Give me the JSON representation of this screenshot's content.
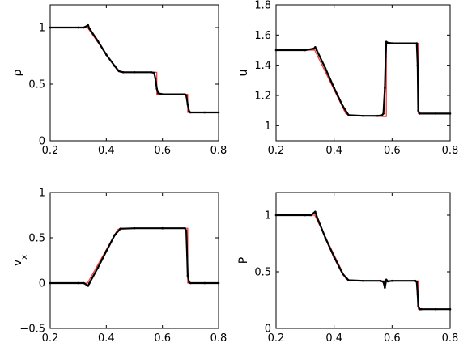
{
  "chart_data": [
    {
      "type": "line",
      "ylabel": "ρ",
      "ylabel_sub": "",
      "xlim": [
        0.2,
        0.8
      ],
      "ylim": [
        0,
        1.2
      ],
      "xticks": [
        "0.2",
        "0.4",
        "0.6",
        "0.8"
      ],
      "yticks": [
        "0",
        "0.5",
        "1"
      ],
      "series": [
        {
          "style": "exact",
          "color": "#ff3030",
          "x": [
            0.2,
            0.333,
            0.44,
            0.45,
            0.58,
            0.58,
            0.69,
            0.69,
            0.8
          ],
          "y": [
            1.0,
            1.0,
            0.62,
            0.605,
            0.605,
            0.41,
            0.41,
            0.25,
            0.25
          ]
        },
        {
          "style": "numerical",
          "color": "#000000",
          "x": [
            0.2,
            0.3,
            0.32,
            0.335,
            0.34,
            0.37,
            0.4,
            0.43,
            0.445,
            0.46,
            0.5,
            0.56,
            0.57,
            0.575,
            0.58,
            0.585,
            0.6,
            0.68,
            0.685,
            0.69,
            0.695,
            0.7,
            0.75,
            0.8
          ],
          "y": [
            1.0,
            1.0,
            1.0,
            1.02,
            0.99,
            0.88,
            0.76,
            0.66,
            0.615,
            0.605,
            0.605,
            0.605,
            0.6,
            0.55,
            0.46,
            0.42,
            0.41,
            0.41,
            0.4,
            0.32,
            0.26,
            0.25,
            0.25,
            0.25
          ]
        }
      ]
    },
    {
      "type": "line",
      "ylabel": "u",
      "ylabel_sub": "",
      "xlim": [
        0.2,
        0.8
      ],
      "ylim": [
        0.9,
        1.8
      ],
      "xticks": [
        "0.2",
        "0.4",
        "0.6",
        "0.8"
      ],
      "yticks": [
        "1",
        "1.2",
        "1.4",
        "1.6",
        "1.8"
      ],
      "series": [
        {
          "style": "exact",
          "color": "#ff3030",
          "x": [
            0.2,
            0.333,
            0.44,
            0.45,
            0.575,
            0.58,
            0.58,
            0.69,
            0.69,
            0.8
          ],
          "y": [
            1.5,
            1.5,
            1.08,
            1.07,
            1.06,
            1.06,
            1.545,
            1.545,
            1.08,
            1.08
          ]
        },
        {
          "style": "numerical",
          "color": "#000000",
          "x": [
            0.2,
            0.3,
            0.33,
            0.335,
            0.34,
            0.37,
            0.4,
            0.43,
            0.45,
            0.5,
            0.55,
            0.565,
            0.57,
            0.575,
            0.578,
            0.58,
            0.583,
            0.6,
            0.685,
            0.688,
            0.69,
            0.695,
            0.75,
            0.8
          ],
          "y": [
            1.5,
            1.5,
            1.51,
            1.52,
            1.5,
            1.38,
            1.25,
            1.13,
            1.07,
            1.065,
            1.065,
            1.068,
            1.08,
            1.25,
            1.46,
            1.555,
            1.55,
            1.545,
            1.545,
            1.4,
            1.1,
            1.08,
            1.08,
            1.08
          ]
        }
      ]
    },
    {
      "type": "line",
      "ylabel": "v",
      "ylabel_sub": "x",
      "xlim": [
        0.2,
        0.8
      ],
      "ylim": [
        -0.5,
        1.0
      ],
      "xticks": [
        "0.2",
        "0.4",
        "0.6",
        "0.8"
      ],
      "yticks": [
        "−0.5",
        "0",
        "0.5",
        "1"
      ],
      "series": [
        {
          "style": "exact",
          "color": "#ff3030",
          "x": [
            0.2,
            0.333,
            0.44,
            0.45,
            0.69,
            0.69,
            0.8
          ],
          "y": [
            0.0,
            0.0,
            0.59,
            0.605,
            0.605,
            0.0,
            0.0
          ]
        },
        {
          "style": "numerical",
          "color": "#000000",
          "x": [
            0.2,
            0.3,
            0.32,
            0.335,
            0.34,
            0.37,
            0.4,
            0.43,
            0.45,
            0.5,
            0.6,
            0.68,
            0.685,
            0.688,
            0.69,
            0.695,
            0.7,
            0.75,
            0.8
          ],
          "y": [
            0.0,
            0.0,
            0.0,
            -0.03,
            0.0,
            0.17,
            0.35,
            0.53,
            0.6,
            0.605,
            0.605,
            0.605,
            0.58,
            0.3,
            0.08,
            0.01,
            0.0,
            0.0,
            0.0
          ]
        }
      ]
    },
    {
      "type": "line",
      "ylabel": "P",
      "ylabel_sub": "",
      "xlim": [
        0.2,
        0.8
      ],
      "ylim": [
        0,
        1.2
      ],
      "xticks": [
        "0.2",
        "0.4",
        "0.6",
        "0.8"
      ],
      "yticks": [
        "0",
        "0.5",
        "1"
      ],
      "series": [
        {
          "style": "exact",
          "color": "#ff3030",
          "x": [
            0.2,
            0.333,
            0.44,
            0.45,
            0.69,
            0.69,
            0.8
          ],
          "y": [
            1.0,
            1.0,
            0.44,
            0.42,
            0.42,
            0.17,
            0.17
          ]
        },
        {
          "style": "numerical",
          "color": "#000000",
          "x": [
            0.2,
            0.3,
            0.32,
            0.335,
            0.34,
            0.37,
            0.4,
            0.43,
            0.45,
            0.5,
            0.56,
            0.57,
            0.575,
            0.58,
            0.585,
            0.6,
            0.68,
            0.685,
            0.688,
            0.69,
            0.695,
            0.7,
            0.75,
            0.8
          ],
          "y": [
            1.0,
            1.0,
            1.0,
            1.03,
            0.99,
            0.8,
            0.63,
            0.48,
            0.425,
            0.42,
            0.42,
            0.41,
            0.36,
            0.43,
            0.415,
            0.42,
            0.42,
            0.41,
            0.3,
            0.2,
            0.17,
            0.17,
            0.17,
            0.17
          ]
        }
      ]
    }
  ]
}
